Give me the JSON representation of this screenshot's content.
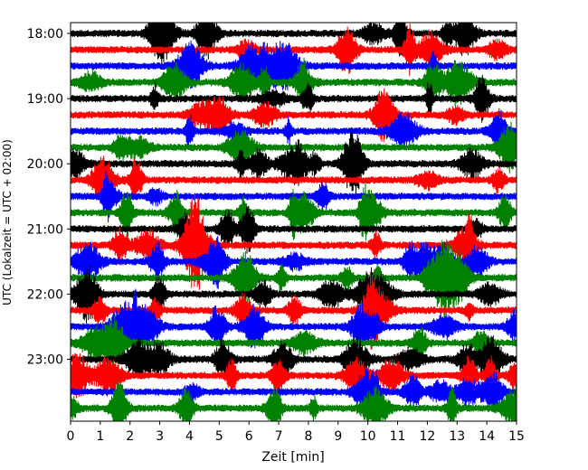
{
  "chart_data": {
    "type": "line",
    "title": "",
    "xlabel": "Zeit  [min]",
    "ylabel": "UTC (Lokalzeit = UTC + 02:00)",
    "xlim": [
      0,
      15
    ],
    "x_ticks": [
      "0",
      "1",
      "2",
      "3",
      "4",
      "5",
      "6",
      "7",
      "8",
      "9",
      "10",
      "11",
      "12",
      "13",
      "14",
      "15"
    ],
    "y_ticks": [
      "18:00",
      "19:00",
      "20:00",
      "21:00",
      "22:00",
      "23:00"
    ],
    "y_range_hours": [
      "17:50",
      "23:57"
    ],
    "trace_interval_minutes": 15,
    "first_trace": "18:00",
    "trace_count": 24,
    "color_cycle": [
      "#000000",
      "#ff0000",
      "#0000ff",
      "#008000"
    ],
    "grid": false,
    "legend": "none"
  }
}
